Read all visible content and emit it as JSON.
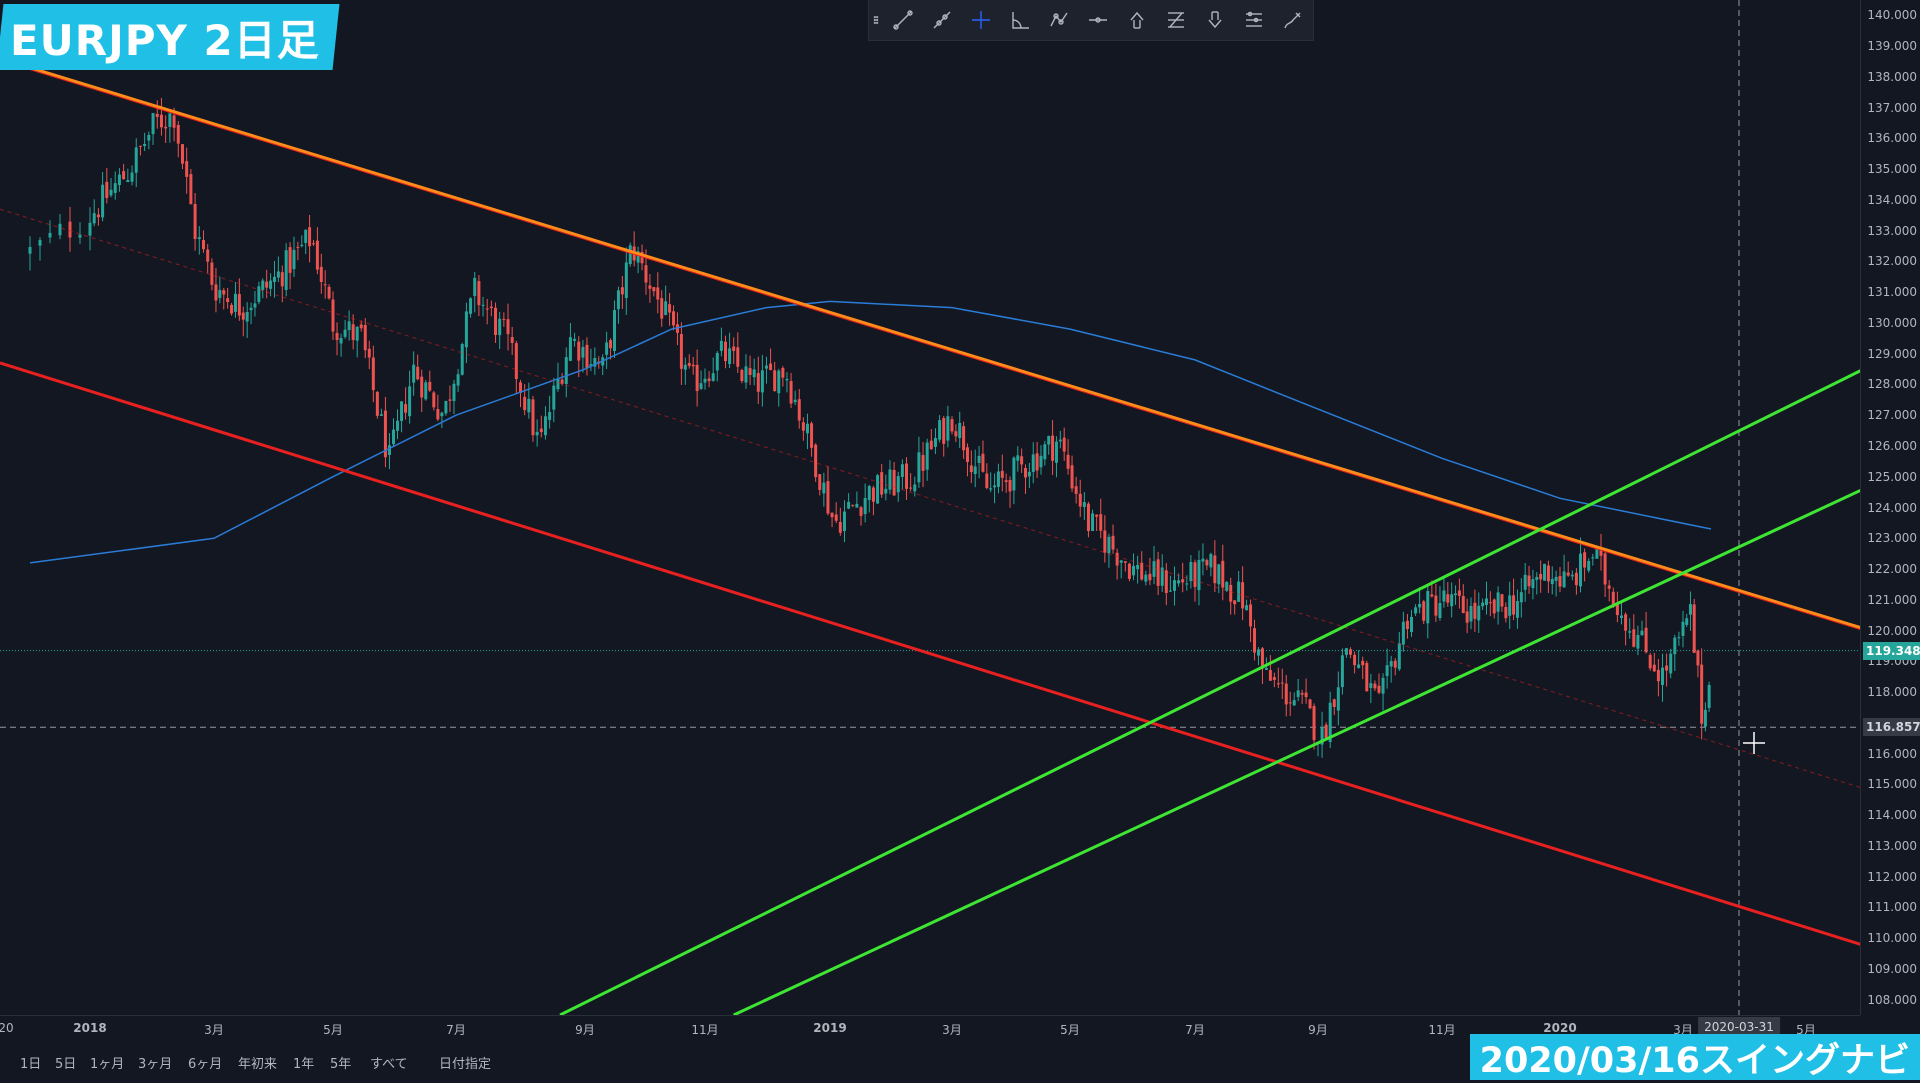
{
  "title": "EURJPY 2日足",
  "footer": "2020/03/16スイングナビ",
  "toolbar": {
    "icons": [
      "drag-handle-icon",
      "trend-line-icon",
      "ray-icon",
      "crosshair-icon",
      "angle-icon",
      "path-icon",
      "horizontal-line-icon",
      "arrow-up-icon",
      "fib-retracement-icon",
      "arrow-down-icon",
      "pitchfork-icon",
      "brush-icon"
    ]
  },
  "price_axis": {
    "min": 107.5,
    "max": 140.5,
    "ticks": [
      "140.000",
      "139.000",
      "138.000",
      "137.000",
      "136.000",
      "135.000",
      "134.000",
      "133.000",
      "132.000",
      "131.000",
      "130.000",
      "129.000",
      "128.000",
      "127.000",
      "126.000",
      "125.000",
      "124.000",
      "123.000",
      "122.000",
      "121.000",
      "120.000",
      "119.000",
      "118.000",
      "117.000",
      "116.000",
      "115.000",
      "114.000",
      "113.000",
      "112.000",
      "111.000",
      "110.000",
      "109.000",
      "108.000"
    ],
    "last_price_label": "119.348",
    "last_price": 119.348,
    "crosshair_price_label": "116.857",
    "crosshair_price": 116.857
  },
  "time_axis": {
    "labels": [
      "20",
      "2018",
      "3月",
      "5月",
      "7月",
      "9月",
      "11月",
      "2019",
      "3月",
      "5月",
      "7月",
      "9月",
      "11月",
      "2020",
      "3月",
      "5月"
    ],
    "crosshair_date": "2020-03-31"
  },
  "range_buttons": [
    "1日",
    "5日",
    "1ヶ月",
    "3ヶ月",
    "6ヶ月",
    "年初来",
    "1年",
    "5年",
    "すべて",
    "日付指定"
  ],
  "colors": {
    "background": "#131722",
    "up": "#26a69a",
    "down": "#ef5350",
    "ma": "#2a7cd6",
    "resistance": "#ff8c1a",
    "channel_red": "#e8201f",
    "channel_green": "#3ee633",
    "accent_badge": "#1fbfe6"
  },
  "chart_data": {
    "type": "candlestick",
    "symbol": "EURJPY",
    "timeframe": "2日足",
    "close_path": [
      {
        "t": "2017-12-20",
        "p": 132.3
      },
      {
        "t": "2018-01-01",
        "p": 133.5
      },
      {
        "t": "2018-01-20",
        "p": 135.0
      },
      {
        "t": "2018-02-01",
        "p": 136.5
      },
      {
        "t": "2018-02-10",
        "p": 136.8
      },
      {
        "t": "2018-02-20",
        "p": 133.0
      },
      {
        "t": "2018-03-01",
        "p": 131.2
      },
      {
        "t": "2018-03-15",
        "p": 130.5
      },
      {
        "t": "2018-04-01",
        "p": 131.4
      },
      {
        "t": "2018-04-20",
        "p": 132.8
      },
      {
        "t": "2018-05-01",
        "p": 130.0
      },
      {
        "t": "2018-05-15",
        "p": 129.5
      },
      {
        "t": "2018-05-29",
        "p": 125.5
      },
      {
        "t": "2018-06-10",
        "p": 128.5
      },
      {
        "t": "2018-06-25",
        "p": 127.0
      },
      {
        "t": "2018-07-10",
        "p": 131.0
      },
      {
        "t": "2018-07-25",
        "p": 129.5
      },
      {
        "t": "2018-08-10",
        "p": 126.0
      },
      {
        "t": "2018-08-25",
        "p": 129.5
      },
      {
        "t": "2018-09-10",
        "p": 128.5
      },
      {
        "t": "2018-09-25",
        "p": 132.5
      },
      {
        "t": "2018-10-10",
        "p": 130.5
      },
      {
        "t": "2018-10-25",
        "p": 128.0
      },
      {
        "t": "2018-11-10",
        "p": 129.0
      },
      {
        "t": "2018-11-25",
        "p": 128.0
      },
      {
        "t": "2018-12-10",
        "p": 128.5
      },
      {
        "t": "2018-12-25",
        "p": 125.5
      },
      {
        "t": "2019-01-03",
        "p": 123.5
      },
      {
        "t": "2019-01-20",
        "p": 124.5
      },
      {
        "t": "2019-02-10",
        "p": 125.0
      },
      {
        "t": "2019-03-01",
        "p": 127.0
      },
      {
        "t": "2019-03-20",
        "p": 124.5
      },
      {
        "t": "2019-04-10",
        "p": 125.5
      },
      {
        "t": "2019-04-25",
        "p": 126.2
      },
      {
        "t": "2019-05-10",
        "p": 123.5
      },
      {
        "t": "2019-06-01",
        "p": 122.0
      },
      {
        "t": "2019-06-20",
        "p": 121.5
      },
      {
        "t": "2019-07-10",
        "p": 122.0
      },
      {
        "t": "2019-07-25",
        "p": 121.0
      },
      {
        "t": "2019-08-05",
        "p": 118.5
      },
      {
        "t": "2019-08-25",
        "p": 117.5
      },
      {
        "t": "2019-09-03",
        "p": 116.5
      },
      {
        "t": "2019-09-15",
        "p": 119.5
      },
      {
        "t": "2019-10-01",
        "p": 117.5
      },
      {
        "t": "2019-10-15",
        "p": 120.5
      },
      {
        "t": "2019-11-01",
        "p": 121.0
      },
      {
        "t": "2019-11-20",
        "p": 120.5
      },
      {
        "t": "2019-12-10",
        "p": 121.0
      },
      {
        "t": "2019-12-25",
        "p": 122.0
      },
      {
        "t": "2020-01-05",
        "p": 121.5
      },
      {
        "t": "2020-01-17",
        "p": 122.5
      },
      {
        "t": "2020-02-01",
        "p": 120.5
      },
      {
        "t": "2020-02-20",
        "p": 118.5
      },
      {
        "t": "2020-03-05",
        "p": 120.5
      },
      {
        "t": "2020-03-12",
        "p": 116.8
      },
      {
        "t": "2020-03-16",
        "p": 119.348
      }
    ],
    "moving_average": [
      {
        "t": "2017-12-20",
        "p": 122.2
      },
      {
        "t": "2018-03-01",
        "p": 123.0
      },
      {
        "t": "2018-05-01",
        "p": 125.0
      },
      {
        "t": "2018-07-01",
        "p": 127.0
      },
      {
        "t": "2018-09-01",
        "p": 128.5
      },
      {
        "t": "2018-10-15",
        "p": 129.8
      },
      {
        "t": "2018-12-01",
        "p": 130.5
      },
      {
        "t": "2019-01-01",
        "p": 130.7
      },
      {
        "t": "2019-03-01",
        "p": 130.5
      },
      {
        "t": "2019-05-01",
        "p": 129.8
      },
      {
        "t": "2019-07-01",
        "p": 128.8
      },
      {
        "t": "2019-09-01",
        "p": 127.2
      },
      {
        "t": "2019-11-01",
        "p": 125.6
      },
      {
        "t": "2020-01-01",
        "p": 124.3
      },
      {
        "t": "2020-03-16",
        "p": 123.3
      }
    ],
    "trend_lines": [
      {
        "name": "resistance",
        "style": "solid",
        "from": {
          "t": "2017-12-14",
          "p": 138.6
        },
        "to": {
          "t": "2020-06-15",
          "p": 120.0
        }
      },
      {
        "name": "channel-lower",
        "style": "solid",
        "from": {
          "t": "2017-12-14",
          "p": 128.7
        },
        "to": {
          "t": "2020-06-15",
          "p": 109.7
        }
      },
      {
        "name": "channel-mid",
        "style": "dashed",
        "from": {
          "t": "2017-12-14",
          "p": 133.7
        },
        "to": {
          "t": "2020-06-15",
          "p": 114.8
        }
      },
      {
        "name": "green-upper",
        "style": "solid",
        "from": {
          "t": "2018-08-20",
          "p": 107.5
        },
        "to": {
          "t": "2020-06-15",
          "p": 128.6
        }
      },
      {
        "name": "green-lower",
        "style": "solid",
        "from": {
          "t": "2018-11-15",
          "p": 107.5
        },
        "to": {
          "t": "2020-06-15",
          "p": 124.7
        }
      }
    ]
  }
}
